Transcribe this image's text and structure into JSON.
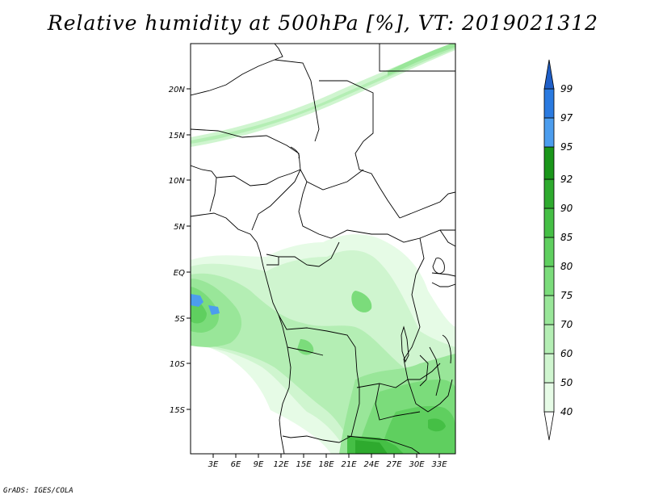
{
  "title": "Relative humidity at 500hPa [%], VT: 2019021312",
  "credit": "GrADS: IGES/COLA",
  "map": {
    "lat_labels": [
      "20N",
      "15N",
      "10N",
      "5N",
      "EQ",
      "5S",
      "10S",
      "15S"
    ],
    "lon_labels": [
      "3E",
      "6E",
      "9E",
      "12E",
      "15E",
      "18E",
      "21E",
      "24E",
      "27E",
      "30E",
      "33E"
    ]
  },
  "colorbar": {
    "labels": [
      "40",
      "50",
      "60",
      "70",
      "75",
      "80",
      "85",
      "90",
      "92",
      "95",
      "97",
      "99"
    ],
    "colors": [
      "#ffffff",
      "#e6fbe6",
      "#cff5cf",
      "#b4eeb4",
      "#99e699",
      "#7bdc7b",
      "#5fcf5f",
      "#45bf45",
      "#2eaa2e",
      "#1a961a",
      "#4c9dee",
      "#2a7ae0",
      "#1f5fc8"
    ]
  }
}
